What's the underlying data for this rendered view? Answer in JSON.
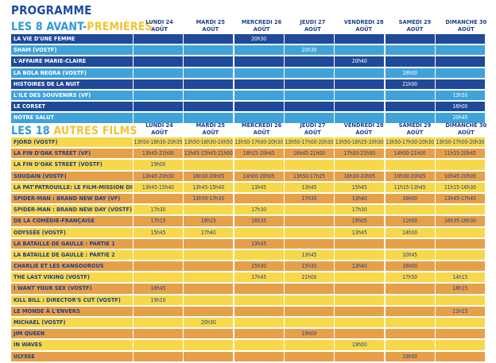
{
  "programme_title": "PROGRAMME",
  "section1": {
    "title_pre": "LES 8 AVANT-",
    "title_hl": "PREMIÈRES"
  },
  "section2": {
    "title_pre": "LES 18 ",
    "title_hl": "AUTRES FILMS"
  },
  "day_headers": [
    {
      "day": "LUNDI 24",
      "month": "AOÛT"
    },
    {
      "day": "MARDI 25",
      "month": "AOÛT"
    },
    {
      "day": "MERCREDI 26",
      "month": "AOÛT"
    },
    {
      "day": "JEUDI 27",
      "month": "AOÛT"
    },
    {
      "day": "VENDREDI 28",
      "month": "AOÛT"
    },
    {
      "day": "SAMEDI 29",
      "month": "AOÛT"
    },
    {
      "day": "DIMANCHE 30",
      "month": "AOÛT"
    }
  ],
  "premieres": [
    {
      "title": "LA VIE D'UNE FEMME",
      "times": [
        "",
        "",
        "20h30",
        "",
        "",
        "",
        ""
      ]
    },
    {
      "title": "SHAM (VOSTF)",
      "times": [
        "",
        "",
        "",
        "20h30",
        "",
        "",
        ""
      ]
    },
    {
      "title": "L'AFFAIRE MARIE-CLAIRE",
      "times": [
        "",
        "",
        "",
        "",
        "20h40",
        "",
        ""
      ]
    },
    {
      "title": "LA BOLA NEGRA (VOSTF)",
      "times": [
        "",
        "",
        "",
        "",
        "",
        "18h00",
        ""
      ]
    },
    {
      "title": "HISTOIRES DE LA NUIT",
      "times": [
        "",
        "",
        "",
        "",
        "",
        "21h00",
        ""
      ]
    },
    {
      "title": "L'ILE DES SOUVENIRS (VF)",
      "times": [
        "",
        "",
        "",
        "",
        "",
        "",
        "13h50"
      ]
    },
    {
      "title": "LE CORSET",
      "times": [
        "",
        "",
        "",
        "",
        "",
        "",
        "16h00"
      ]
    },
    {
      "title": "NOTRE SALUT",
      "times": [
        "",
        "",
        "",
        "",
        "",
        "",
        "20h45"
      ]
    }
  ],
  "films": [
    {
      "title": "FJORD (VOSTF)",
      "times": [
        "13h50-16h30-20h35",
        "13h50-16h30-20h50",
        "13h50-17h00-20h30",
        "13h50-17h00-20h30",
        "13h50-16h25-20h30",
        "13h50-17h00-20h30",
        "13h50-17h00-20h30"
      ]
    },
    {
      "title": "LA FIN D'OAK STREET (VF)",
      "times": [
        "13h45-21h00",
        "13h45-15h45-21h00",
        "18h15-20h45",
        "16h45-21h00",
        "17h00-21h00",
        "14h00-21h00",
        "11h15-20h45"
      ]
    },
    {
      "title": "LA FIN D'OAK STREET (VOSTF)",
      "times": [
        "19h00",
        "",
        "",
        "",
        "",
        "",
        ""
      ]
    },
    {
      "title": "SOUDAIN (VOSTF)",
      "times": [
        "13h45-20h30",
        "16h30-20h05",
        "14h00-20h05",
        "13h50-17h25",
        "16h30-20h05",
        "10h30-20h05",
        "10h45-20h05"
      ]
    },
    {
      "title": "LA PAT'PATROUILLE: LE FILM-MISSION DINO (VF)",
      "times": [
        "13h45-15h40",
        "13h45-15h40",
        "13h45",
        "13h45",
        "15h45",
        "11h15-13h45",
        "11h15-16h30"
      ]
    },
    {
      "title": "SPIDER-MAN : BRAND NEW DAY (VF)",
      "times": [
        "",
        "13h50-17h30",
        "",
        "17h30",
        "13h40",
        "16h00",
        "13h45-17h45"
      ]
    },
    {
      "title": "SPIDER-MAN : BRAND NEW DAY (VOSTF)",
      "times": [
        "17h30",
        "",
        "17h30",
        "",
        "17h30",
        "",
        ""
      ]
    },
    {
      "title": "DE LA COMÉDIE-FRANÇAISE",
      "times": [
        "17h15",
        "19h15",
        "16h35",
        "",
        "19h05",
        "11h00",
        "16h35-18h30"
      ]
    },
    {
      "title": "ODYSSÉE (VOSTF)",
      "times": [
        "15h45",
        "17h40",
        "",
        "",
        "13h45",
        "14h00",
        ""
      ]
    },
    {
      "title": "LA BATAILLE DE GAULLE : PARTIE 1",
      "times": [
        "",
        "",
        "13h45",
        "",
        "",
        "",
        ""
      ]
    },
    {
      "title": "LA BATAILLE DE GAULLE : PARTIE 2",
      "times": [
        "",
        "",
        "",
        "13h45",
        "",
        "10h45",
        ""
      ]
    },
    {
      "title": "CHARLIE ET LES KANGOUROUS",
      "times": [
        "",
        "",
        "15h30",
        "15h30",
        "13h40",
        "16h00",
        ""
      ]
    },
    {
      "title": "THE LAST VIKING (VOSTF)",
      "times": [
        "",
        "",
        "17h45",
        "21h00",
        "",
        "17h50",
        "14h15"
      ]
    },
    {
      "title": "I WANT YOUR SEX (VOSTF)",
      "times": [
        "18h45",
        "",
        "",
        "",
        "",
        "",
        "18h15"
      ]
    },
    {
      "title": "KILL BILL : DIRECTOR'S CUT (VOSTF)",
      "times": [
        "19h10",
        "",
        "",
        "",
        "",
        "",
        ""
      ]
    },
    {
      "title": "LE MONDE À L'ENVERS",
      "times": [
        "",
        "",
        "",
        "",
        "",
        "",
        "11h15"
      ]
    },
    {
      "title": "MICHAEL (VOSTF)",
      "times": [
        "",
        "20h30",
        "",
        "",
        "",
        "",
        ""
      ]
    },
    {
      "title": "JIM QUEEN",
      "times": [
        "",
        "",
        "",
        "19h00",
        "",
        "",
        ""
      ]
    },
    {
      "title": "IN WAVES",
      "times": [
        "",
        "",
        "",
        "",
        "19h00",
        "",
        ""
      ]
    },
    {
      "title": "ULYSSE",
      "times": [
        "",
        "",
        "",
        "",
        "",
        "19h00",
        ""
      ]
    }
  ],
  "colors": {
    "dark_blue": "#1f4a9a",
    "light_blue": "#3fa3da",
    "orange": "#e6a04a",
    "yellow": "#f6d84a",
    "title_blue": "#1f4aa0"
  }
}
